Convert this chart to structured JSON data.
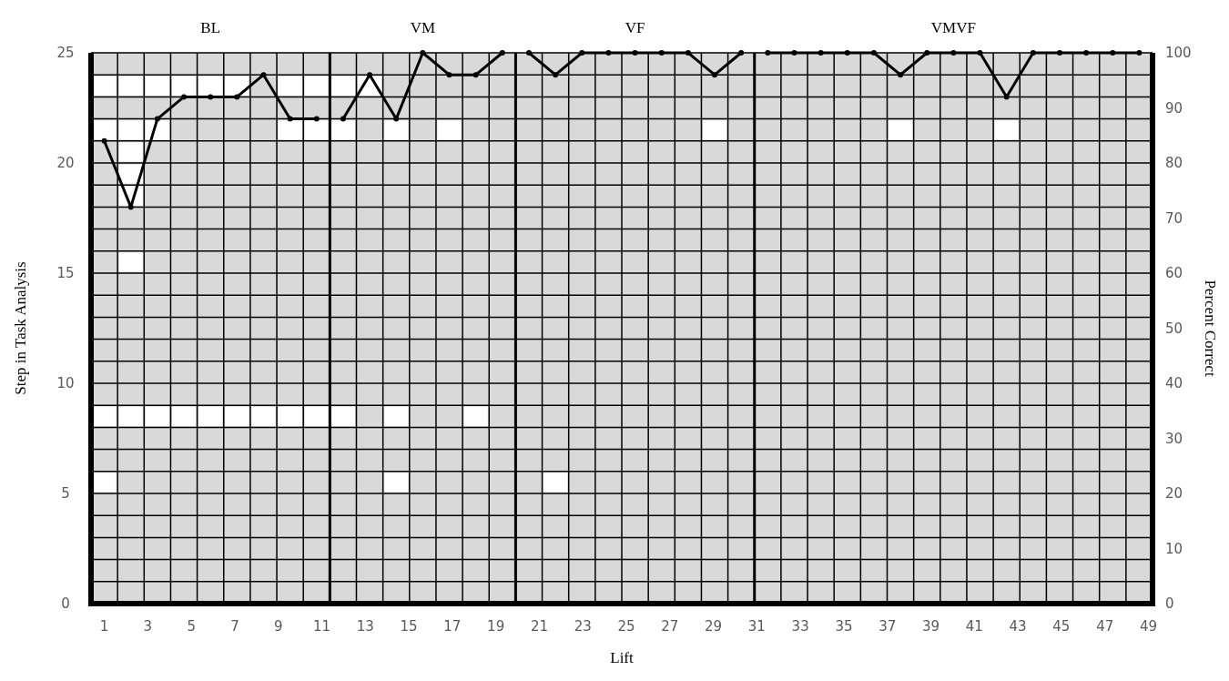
{
  "chart_data": {
    "type": "line",
    "xlabel": "Lift",
    "ylabel": "Step in Task Analysis",
    "y2label": "Percent Correct",
    "annotations": [
      "BL",
      "VM",
      "VF",
      "VMVF"
    ],
    "xlim": [
      0.39,
      49.19
    ],
    "xticks": [
      1,
      3,
      5,
      7,
      9,
      11,
      13,
      15,
      17,
      19,
      21,
      23,
      25,
      27,
      29,
      31,
      33,
      35,
      37,
      39,
      41,
      43,
      45,
      47,
      49
    ],
    "ylim": [
      0,
      25
    ],
    "yticks": [
      0,
      {
        "value": 1,
        "label": null
      },
      {
        "value": 2,
        "label": null
      },
      {
        "value": 3,
        "label": null
      },
      {
        "value": 4,
        "label": null
      },
      5,
      {
        "value": 6,
        "label": null
      },
      {
        "value": 7,
        "label": null
      },
      {
        "value": 8,
        "label": null
      },
      {
        "value": 9,
        "label": null
      },
      10,
      {
        "value": 11,
        "label": null
      },
      {
        "value": 12,
        "label": null
      },
      {
        "value": 13,
        "label": null
      },
      {
        "value": 14,
        "label": null
      },
      15,
      {
        "value": 16,
        "label": null
      },
      {
        "value": 17,
        "label": null
      },
      {
        "value": 18,
        "label": null
      },
      {
        "value": 19,
        "label": null
      },
      20,
      {
        "value": 21,
        "label": null
      },
      {
        "value": 22,
        "label": null
      },
      {
        "value": 23,
        "label": null
      },
      {
        "value": 24,
        "label": null
      },
      25
    ],
    "y2lim": [
      0,
      100
    ],
    "y2ticks": [
      0,
      10,
      20,
      30,
      40,
      50,
      60,
      70,
      80,
      90,
      100
    ],
    "grid": true,
    "ref_lines": [
      {
        "axis": "x",
        "value": 11.37,
        "color": "#000000"
      },
      {
        "axis": "x",
        "value": 19.91,
        "color": "#000000"
      },
      {
        "axis": "x",
        "value": 30.89,
        "color": "#000000"
      }
    ],
    "series": [
      {
        "type": "scatter",
        "marker": "square",
        "color": "#ffffff",
        "x": [
          1,
          1,
          1,
          1,
          2.22,
          2.22,
          2.22,
          2.22,
          2.22,
          2.22,
          2.22,
          3.44,
          3.44,
          3.44,
          4.66,
          4.66,
          5.88,
          5.88,
          7.1,
          7.1,
          8.32,
          9.54,
          9.54,
          9.54,
          10.76,
          10.76,
          10.76,
          11.98,
          11.98,
          11.98,
          13.2,
          14.42,
          14.42,
          14.42,
          16.86,
          18.08,
          21.74,
          29.06,
          37.6,
          42.48
        ],
        "values": [
          23.5,
          21.5,
          8.5,
          5.5,
          23.5,
          21.5,
          20.5,
          19.5,
          18.5,
          15.5,
          8.5,
          23.5,
          21.5,
          8.5,
          23.5,
          8.5,
          23.5,
          8.5,
          23.5,
          8.5,
          8.5,
          23.5,
          21.5,
          8.5,
          23.5,
          21.5,
          8.5,
          23.5,
          21.5,
          8.5,
          23.5,
          21.5,
          8.5,
          5.5,
          21.5,
          8.5,
          5.5,
          21.5,
          21.5,
          21.5
        ]
      },
      {
        "type": "line",
        "axis": "y2",
        "marker": "circle",
        "color": "#000000",
        "x": [
          1,
          2.22,
          3.44,
          4.66,
          5.88,
          7.1,
          8.32,
          9.54,
          10.76
        ],
        "values": [
          84,
          72,
          88,
          92,
          92,
          92,
          96,
          88,
          88
        ]
      },
      {
        "type": "line",
        "axis": "y2",
        "marker": "circle",
        "color": "#000000",
        "x": [
          11.98,
          13.2,
          14.42,
          15.64,
          16.86,
          18.08,
          19.3
        ],
        "values": [
          88,
          96,
          88,
          100,
          96,
          96,
          100
        ]
      },
      {
        "type": "line",
        "axis": "y2",
        "marker": "circle",
        "color": "#000000",
        "x": [
          20.52,
          21.74,
          22.96,
          24.18,
          25.4,
          26.62,
          27.84,
          29.06,
          30.28
        ],
        "values": [
          100,
          96,
          100,
          100,
          100,
          100,
          100,
          96,
          100
        ]
      },
      {
        "type": "line",
        "axis": "y2",
        "marker": "circle",
        "color": "#000000",
        "x": [
          31.5,
          32.72,
          33.94,
          35.16,
          36.38,
          37.6,
          38.82,
          40.04,
          41.26,
          42.48,
          43.7,
          44.92,
          46.14,
          47.36,
          48.58
        ],
        "values": [
          100,
          100,
          100,
          100,
          100,
          96,
          100,
          100,
          100,
          92,
          100,
          100,
          100,
          100,
          100
        ]
      }
    ]
  }
}
